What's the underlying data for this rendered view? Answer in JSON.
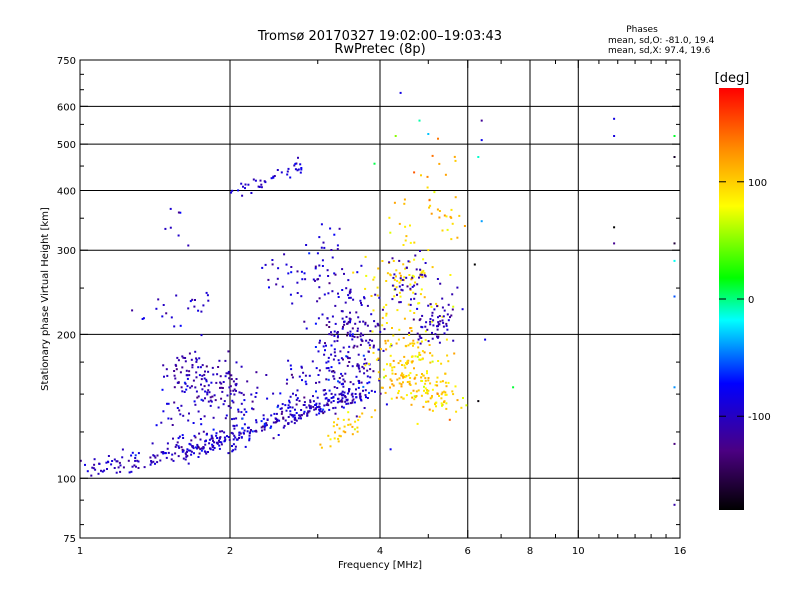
{
  "chart_data": {
    "type": "scatter",
    "title": "Tromsø 20170327 19:02:00–19:03:43",
    "subtitle": "RwPretec (8p)",
    "xlabel": "Frequency [MHz]",
    "ylabel": "Stationary phase Virtual Height [km]",
    "x_scale": "log",
    "y_scale": "log",
    "xlim": [
      1,
      16
    ],
    "ylim": [
      75,
      750
    ],
    "x_ticks": [
      1,
      2,
      4,
      6,
      8,
      10,
      16
    ],
    "x_tick_labels": [
      "1",
      "2",
      "4",
      "6",
      "8",
      "10",
      "16"
    ],
    "x_grid": [
      2,
      4,
      6,
      8,
      10
    ],
    "y_ticks": [
      75,
      100,
      200,
      300,
      400,
      500,
      600,
      750
    ],
    "y_tick_labels": [
      "75",
      "100",
      "200",
      "300",
      "400",
      "500",
      "600",
      "750"
    ],
    "y_grid": [
      100,
      200,
      300,
      400,
      500,
      600
    ],
    "grid": true,
    "stats": {
      "heading": "Phases",
      "line_o": "mean, sd,O: -81.0, 19.4",
      "line_x": "mean, sd,X:  97.4, 19.6"
    },
    "colorbar": {
      "label": "[deg]",
      "range": [
        -180,
        180
      ],
      "ticks": [
        100,
        0,
        -100
      ],
      "tick_labels": [
        "100",
        "0",
        "-100"
      ],
      "colormap": [
        "#000000",
        "#4b0082",
        "#0000ff",
        "#00ffff",
        "#00ff00",
        "#ffff00",
        "#ff8800",
        "#ff0000"
      ]
    },
    "clusters": [
      {
        "name": "o-trace-low",
        "points": [
          [
            1.0,
            106
          ],
          [
            1.1,
            106
          ],
          [
            1.2,
            107
          ],
          [
            1.3,
            109
          ],
          [
            1.4,
            111
          ],
          [
            1.5,
            113
          ],
          [
            1.6,
            114
          ],
          [
            1.7,
            116
          ],
          [
            1.8,
            118
          ],
          [
            1.9,
            120
          ],
          [
            2.0,
            122
          ],
          [
            2.2,
            126
          ],
          [
            2.4,
            130
          ],
          [
            2.6,
            134
          ],
          [
            2.8,
            138
          ],
          [
            3.0,
            142
          ],
          [
            3.3,
            147
          ],
          [
            3.6,
            150
          ]
        ],
        "count": 260,
        "jx": 0.03,
        "jy": 0.025,
        "phase": -105,
        "psd": 12
      },
      {
        "name": "x-trace-low",
        "points": [
          [
            1.5,
            116
          ],
          [
            1.7,
            118
          ],
          [
            1.9,
            120
          ],
          [
            2.1,
            124
          ],
          [
            2.3,
            128
          ],
          [
            2.5,
            132
          ],
          [
            2.8,
            137
          ],
          [
            3.1,
            143
          ],
          [
            3.4,
            148
          ],
          [
            3.8,
            152
          ]
        ],
        "count": 150,
        "jx": 0.03,
        "jy": 0.03,
        "phase": -95,
        "psd": 15
      },
      {
        "name": "o-cluster-165",
        "points": [
          [
            1.55,
            170
          ],
          [
            1.65,
            165
          ],
          [
            1.75,
            160
          ],
          [
            1.85,
            155
          ],
          [
            1.95,
            170
          ],
          [
            2.05,
            150
          ]
        ],
        "count": 130,
        "jx": 0.05,
        "jy": 0.06,
        "phase": -110,
        "psd": 12
      },
      {
        "name": "o-scatter-mid",
        "points": [
          [
            1.5,
            135
          ],
          [
            1.8,
            138
          ],
          [
            2.1,
            140
          ],
          [
            2.5,
            150
          ],
          [
            2.9,
            160
          ],
          [
            3.2,
            170
          ],
          [
            3.5,
            155
          ],
          [
            3.8,
            165
          ]
        ],
        "count": 200,
        "jx": 0.06,
        "jy": 0.07,
        "phase": -100,
        "psd": 18
      },
      {
        "name": "o-f2-spread",
        "points": [
          [
            3.1,
            230
          ],
          [
            3.3,
            210
          ],
          [
            3.5,
            190
          ],
          [
            3.7,
            220
          ],
          [
            3.9,
            175
          ],
          [
            3.4,
            260
          ]
        ],
        "count": 160,
        "jx": 0.05,
        "jy": 0.1,
        "phase": -105,
        "psd": 14
      },
      {
        "name": "o-high-trace",
        "points": [
          [
            2.0,
            400
          ],
          [
            2.2,
            410
          ],
          [
            2.4,
            425
          ],
          [
            2.6,
            440
          ],
          [
            2.8,
            455
          ]
        ],
        "count": 40,
        "jx": 0.02,
        "jy": 0.02,
        "phase": -95,
        "psd": 10
      },
      {
        "name": "o-high-mid",
        "points": [
          [
            2.3,
            270
          ],
          [
            2.5,
            265
          ],
          [
            2.7,
            280
          ],
          [
            2.9,
            260
          ],
          [
            3.3,
            330
          ],
          [
            2.6,
            240
          ]
        ],
        "count": 50,
        "jx": 0.04,
        "jy": 0.05,
        "phase": -95,
        "psd": 15
      },
      {
        "name": "o-left-sparse",
        "points": [
          [
            1.3,
            215
          ],
          [
            1.4,
            220
          ],
          [
            1.5,
            225
          ],
          [
            1.6,
            215
          ],
          [
            1.7,
            240
          ],
          [
            1.8,
            235
          ],
          [
            1.45,
            360
          ],
          [
            1.65,
            385
          ]
        ],
        "count": 30,
        "jx": 0.03,
        "jy": 0.04,
        "phase": -100,
        "psd": 15
      },
      {
        "name": "x-yellow-main",
        "points": [
          [
            4.2,
            165
          ],
          [
            4.5,
            160
          ],
          [
            4.8,
            155
          ],
          [
            5.2,
            150
          ],
          [
            5.5,
            145
          ],
          [
            4.0,
            180
          ],
          [
            4.6,
            190
          ],
          [
            5.0,
            175
          ]
        ],
        "count": 220,
        "jx": 0.05,
        "jy": 0.06,
        "phase": 100,
        "psd": 15
      },
      {
        "name": "x-yellow-upper",
        "points": [
          [
            4.0,
            270
          ],
          [
            4.3,
            255
          ],
          [
            4.6,
            245
          ],
          [
            5.0,
            240
          ],
          [
            4.5,
            330
          ],
          [
            4.1,
            210
          ]
        ],
        "count": 90,
        "jx": 0.05,
        "jy": 0.06,
        "phase": 95,
        "psd": 12
      },
      {
        "name": "x-yellow-low",
        "points": [
          [
            3.1,
            115
          ],
          [
            3.3,
            122
          ],
          [
            3.5,
            130
          ],
          [
            3.8,
            135
          ]
        ],
        "count": 35,
        "jx": 0.03,
        "jy": 0.03,
        "phase": 100,
        "psd": 12
      },
      {
        "name": "o-blue-right",
        "points": [
          [
            4.7,
            210
          ],
          [
            5.0,
            200
          ],
          [
            5.3,
            215
          ],
          [
            5.6,
            220
          ],
          [
            4.4,
            255
          ],
          [
            4.8,
            270
          ]
        ],
        "count": 110,
        "jx": 0.04,
        "jy": 0.05,
        "phase": -110,
        "psd": 10
      },
      {
        "name": "x-highs",
        "points": [
          [
            4.9,
            380
          ],
          [
            5.2,
            375
          ],
          [
            5.5,
            350
          ],
          [
            5.7,
            320
          ],
          [
            5.6,
            460
          ],
          [
            5.1,
            470
          ],
          [
            4.2,
            330
          ]
        ],
        "count": 35,
        "jx": 0.02,
        "jy": 0.04,
        "phase": 110,
        "psd": 20
      },
      {
        "name": "mixed-sparse",
        "points": [
          [
            4.4,
            640
          ],
          [
            4.3,
            520
          ],
          [
            4.8,
            560
          ],
          [
            5.0,
            525
          ],
          [
            6.4,
            560
          ],
          [
            6.4,
            510
          ],
          [
            6.3,
            470
          ],
          [
            6.4,
            345
          ],
          [
            6.2,
            280
          ],
          [
            6.5,
            195
          ],
          [
            6.3,
            145
          ],
          [
            7.4,
            155
          ],
          [
            11.8,
            565
          ],
          [
            11.8,
            520
          ],
          [
            11.8,
            335
          ],
          [
            11.8,
            310
          ],
          [
            15.6,
            520
          ],
          [
            15.6,
            470
          ],
          [
            15.6,
            310
          ],
          [
            15.6,
            285
          ],
          [
            15.6,
            240
          ],
          [
            15.6,
            155
          ],
          [
            15.6,
            118
          ],
          [
            15.6,
            88
          ],
          [
            3.9,
            455
          ],
          [
            4.2,
            115
          ]
        ],
        "count": 26,
        "jx": 0.005,
        "jy": 0.005,
        "phase": -90,
        "psd": 70
      }
    ]
  }
}
